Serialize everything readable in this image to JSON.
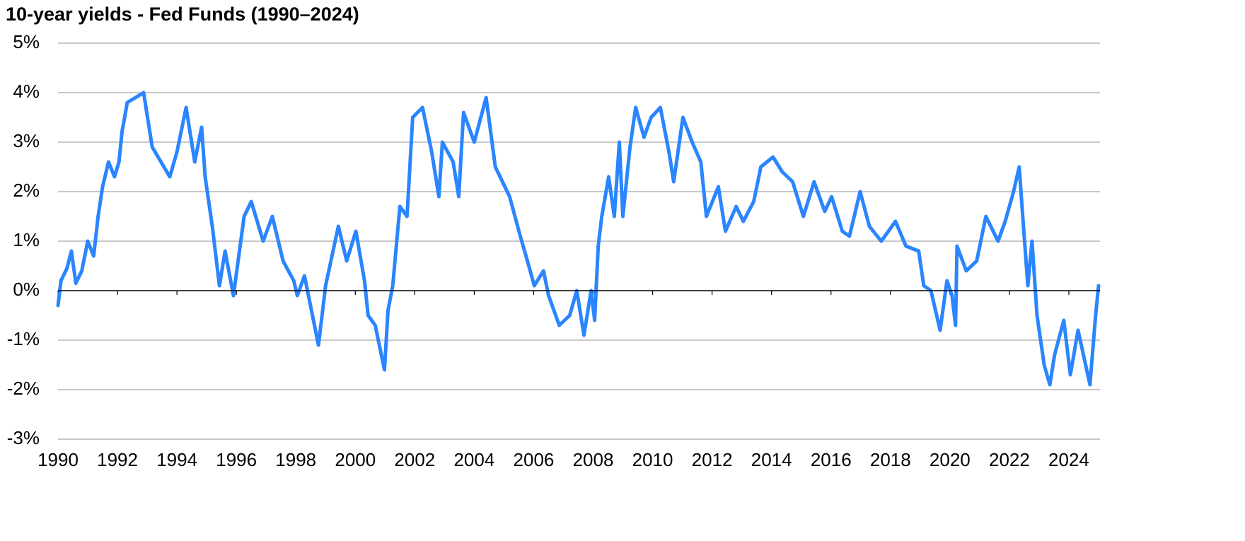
{
  "chart_data": {
    "type": "line",
    "title": "10-year yields - Fed Funds (1990–2024)",
    "x": [
      1990.0,
      1990.1,
      1990.3,
      1990.45,
      1990.6,
      1990.8,
      1991.0,
      1991.2,
      1991.35,
      1991.5,
      1991.7,
      1991.9,
      1992.05,
      1992.15,
      1992.33,
      1992.88,
      1993.17,
      1993.76,
      1994.0,
      1994.31,
      1994.6,
      1994.83,
      1994.95,
      1995.19,
      1995.43,
      1995.62,
      1995.9,
      1996.26,
      1996.5,
      1996.9,
      1997.21,
      1997.57,
      1997.93,
      1998.05,
      1998.29,
      1998.76,
      1999.0,
      1999.43,
      1999.71,
      2000.02,
      2000.31,
      2000.43,
      2000.67,
      2000.98,
      2001.1,
      2001.26,
      2001.5,
      2001.74,
      2001.93,
      2002.26,
      2002.57,
      2002.81,
      2002.93,
      2003.29,
      2003.48,
      2003.64,
      2004.0,
      2004.4,
      2004.71,
      2005.19,
      2005.55,
      2005.79,
      2006.02,
      2006.33,
      2006.5,
      2006.86,
      2007.21,
      2007.45,
      2007.69,
      2007.93,
      2008.05,
      2008.17,
      2008.29,
      2008.52,
      2008.71,
      2008.88,
      2009.0,
      2009.24,
      2009.43,
      2009.71,
      2009.95,
      2010.26,
      2010.55,
      2010.71,
      2011.02,
      2011.33,
      2011.62,
      2011.81,
      2012.21,
      2012.45,
      2012.81,
      2013.05,
      2013.4,
      2013.64,
      2014.05,
      2014.36,
      2014.71,
      2015.07,
      2015.43,
      2015.79,
      2016.02,
      2016.38,
      2016.62,
      2016.98,
      2017.29,
      2017.69,
      2018.17,
      2018.52,
      2018.95,
      2019.12,
      2019.36,
      2019.67,
      2019.9,
      2020.07,
      2020.19,
      2020.24,
      2020.55,
      2020.9,
      2021.21,
      2021.62,
      2021.86,
      2022.14,
      2022.33,
      2022.45,
      2022.62,
      2022.76,
      2022.93,
      2023.17,
      2023.36,
      2023.52,
      2023.83,
      2024.05,
      2024.31,
      2024.71,
      2024.9,
      2025.0
    ],
    "series": [
      {
        "color": "#2a85ff",
        "values": [
          -0.3,
          0.2,
          0.45,
          0.8,
          0.15,
          0.4,
          1.0,
          0.7,
          1.5,
          2.1,
          2.6,
          2.3,
          2.6,
          3.2,
          3.8,
          4.0,
          2.9,
          2.3,
          2.8,
          3.7,
          2.6,
          3.3,
          2.3,
          1.3,
          0.1,
          0.8,
          -0.1,
          1.5,
          1.8,
          1.0,
          1.5,
          0.6,
          0.2,
          -0.1,
          0.3,
          -1.1,
          0.1,
          1.3,
          0.6,
          1.2,
          0.2,
          -0.5,
          -0.7,
          -1.6,
          -0.4,
          0.1,
          1.7,
          1.5,
          3.5,
          3.7,
          2.8,
          1.9,
          3.0,
          2.6,
          1.9,
          3.6,
          3.0,
          3.9,
          2.5,
          1.9,
          1.1,
          0.6,
          0.1,
          0.4,
          -0.1,
          -0.7,
          -0.5,
          0.0,
          -0.9,
          0.0,
          -0.6,
          0.9,
          1.5,
          2.3,
          1.5,
          3.0,
          1.5,
          2.9,
          3.7,
          3.1,
          3.5,
          3.7,
          2.8,
          2.2,
          3.5,
          3.0,
          2.6,
          1.5,
          2.1,
          1.2,
          1.7,
          1.4,
          1.8,
          2.5,
          2.7,
          2.4,
          2.2,
          1.5,
          2.2,
          1.6,
          1.9,
          1.2,
          1.1,
          2.0,
          1.3,
          1.0,
          1.4,
          0.9,
          0.8,
          0.1,
          0.0,
          -0.8,
          0.2,
          -0.1,
          -0.7,
          0.9,
          0.4,
          0.6,
          1.5,
          1.0,
          1.4,
          2.0,
          2.5,
          1.5,
          0.1,
          1.0,
          -0.5,
          -1.5,
          -1.9,
          -1.3,
          -0.6,
          -1.7,
          -0.8,
          -1.9,
          -0.5,
          0.1
        ]
      }
    ],
    "xlim": [
      1990,
      2025
    ],
    "xticks": [
      1990,
      1992,
      1994,
      1996,
      1998,
      2000,
      2002,
      2004,
      2006,
      2008,
      2010,
      2012,
      2014,
      2016,
      2018,
      2020,
      2022,
      2024
    ],
    "ylim": [
      -3,
      5
    ],
    "yticks": [
      {
        "value": -3,
        "label": "-3%"
      },
      {
        "value": -2,
        "label": "-2%"
      },
      {
        "value": -1,
        "label": "-1%"
      },
      {
        "value": 0,
        "label": "0%"
      },
      {
        "value": 1,
        "label": "1%"
      },
      {
        "value": 2,
        "label": "2%"
      },
      {
        "value": 3,
        "label": "3%"
      },
      {
        "value": 4,
        "label": "4%"
      },
      {
        "value": 5,
        "label": "5%"
      }
    ],
    "grid": true
  }
}
